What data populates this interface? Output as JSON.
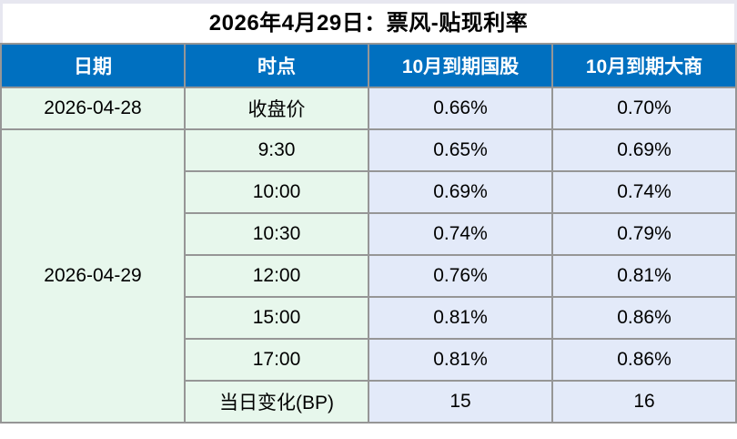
{
  "title": "2026年4月29日：票风-贴现利率",
  "chart_data": {
    "type": "table",
    "title": "2026年4月29日：票风-贴现利率",
    "columns": [
      "日期",
      "时点",
      "10月到期国股",
      "10月到期大商"
    ],
    "rows": [
      [
        "2026-04-28",
        "收盘价",
        "0.66%",
        "0.70%"
      ],
      [
        "2026-04-29",
        "9:30",
        "0.65%",
        "0.69%"
      ],
      [
        "2026-04-29",
        "10:00",
        "0.69%",
        "0.74%"
      ],
      [
        "2026-04-29",
        "10:30",
        "0.74%",
        "0.79%"
      ],
      [
        "2026-04-29",
        "12:00",
        "0.76%",
        "0.81%"
      ],
      [
        "2026-04-29",
        "15:00",
        "0.81%",
        "0.86%"
      ],
      [
        "2026-04-29",
        "17:00",
        "0.81%",
        "0.86%"
      ],
      [
        "2026-04-29",
        "当日变化(BP)",
        "15",
        "16"
      ]
    ],
    "layout": {
      "merged_date_cell": {
        "value": "2026-04-29",
        "rowspan": 7
      },
      "red_value_row_label": "当日变化(BP)",
      "grid": "on"
    }
  },
  "colors": {
    "header_bg": "#0070c0",
    "header_text": "#ffffff",
    "label_col_bg": "#e7f7ec",
    "value_col_bg": "#e3eaf9",
    "grid_border": "#969696",
    "change_value_red": "#e8463f",
    "page_edge": "#e7e7f0",
    "title_text": "#000000"
  }
}
